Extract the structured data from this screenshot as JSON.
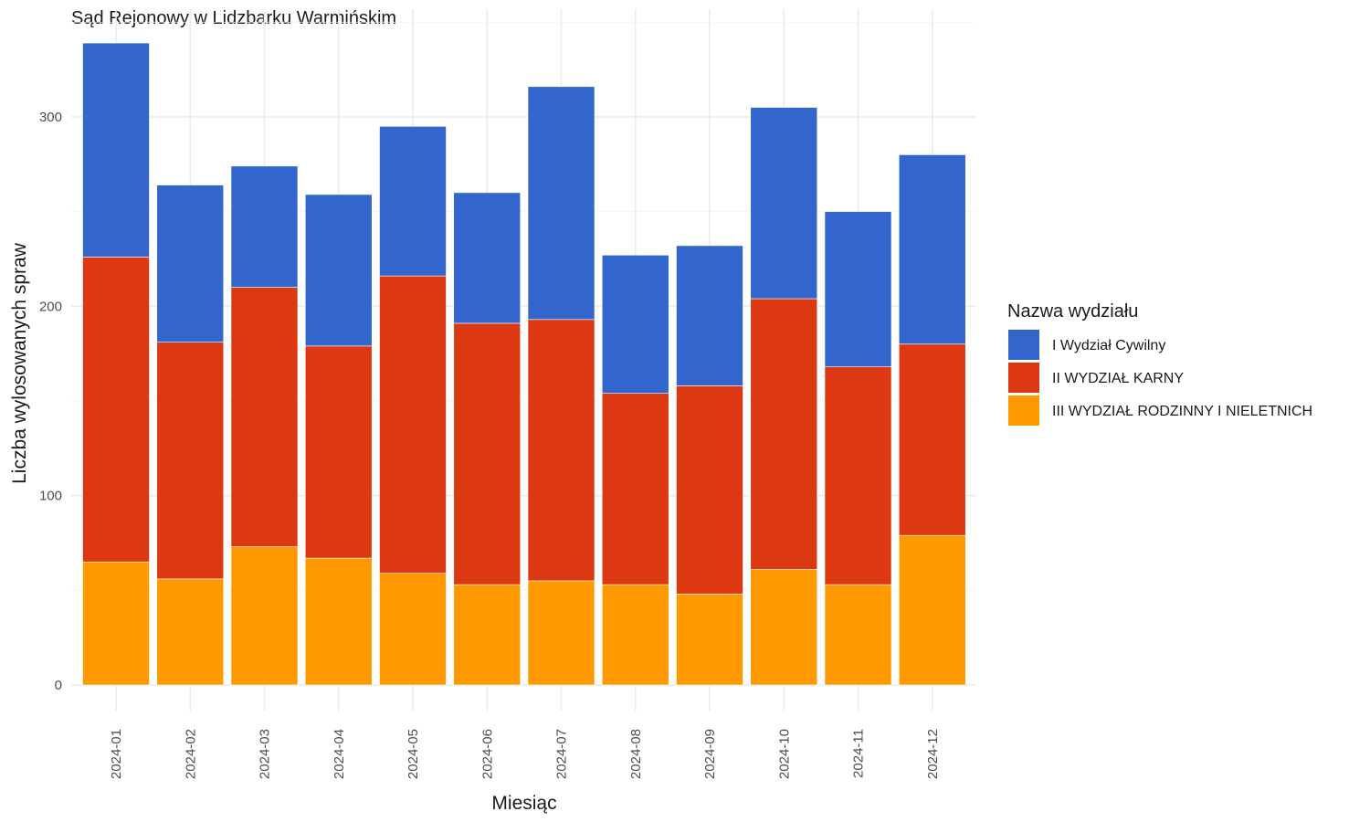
{
  "chart_data": {
    "type": "bar",
    "stacked": true,
    "title": "Sąd Rejonowy w Lidzbarku Warmińskim",
    "xlabel": "Miesiąc",
    "ylabel": "Liczba wylosowanych spraw",
    "categories": [
      "2024-01",
      "2024-02",
      "2024-03",
      "2024-04",
      "2024-05",
      "2024-06",
      "2024-07",
      "2024-08",
      "2024-09",
      "2024-10",
      "2024-11",
      "2024-12"
    ],
    "ylim": [
      0,
      340
    ],
    "yticks": [
      0,
      100,
      200,
      300
    ],
    "grid": true,
    "legend": {
      "title": "Nazwa wydziału",
      "position": "right"
    },
    "series": [
      {
        "name": "I Wydział Cywilny",
        "color": "#3366CC",
        "values": [
          113,
          83,
          64,
          80,
          79,
          69,
          123,
          73,
          74,
          101,
          82,
          100
        ]
      },
      {
        "name": "II WYDZIAŁ KARNY",
        "color": "#DC3912",
        "values": [
          161,
          125,
          137,
          112,
          157,
          138,
          138,
          101,
          110,
          143,
          115,
          101
        ]
      },
      {
        "name": "III WYDZIAŁ RODZINNY I NIELETNICH",
        "color": "#FF9900",
        "values": [
          65,
          56,
          73,
          67,
          59,
          53,
          55,
          53,
          48,
          61,
          53,
          79
        ]
      }
    ],
    "stack_order_bottom_to_top": [
      2,
      1,
      0
    ]
  }
}
